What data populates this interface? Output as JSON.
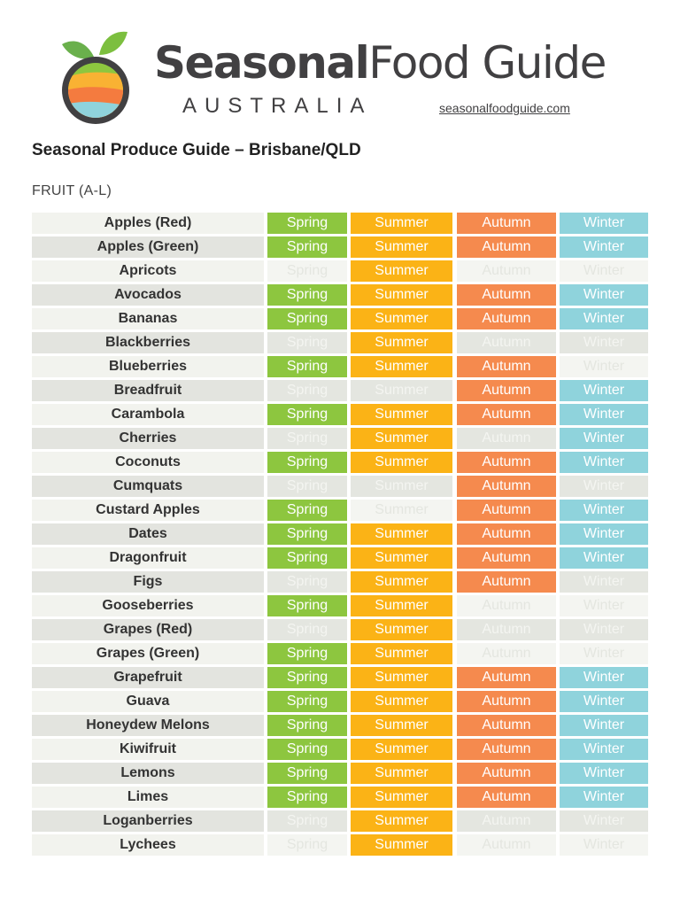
{
  "header": {
    "brand_bold": "Seasonal",
    "brand_light": "Food Guide",
    "country": "AUSTRALIA",
    "site": "seasonalfoodguide.com"
  },
  "title": "Seasonal Produce Guide – Brisbane/QLD",
  "section": "FRUIT  (A-L)",
  "season_labels": [
    "Spring",
    "Summer",
    "Autumn",
    "Winter"
  ],
  "colors": {
    "spring": "#8dc63f",
    "summer": "#fbb316",
    "autumn": "#f58a4e",
    "winter": "#8fd3dc"
  },
  "rows": [
    {
      "name": "Apples (Red)",
      "seasons": [
        1,
        1,
        1,
        1
      ]
    },
    {
      "name": "Apples (Green)",
      "seasons": [
        1,
        1,
        1,
        1
      ]
    },
    {
      "name": "Apricots",
      "seasons": [
        0,
        1,
        0,
        0
      ]
    },
    {
      "name": "Avocados",
      "seasons": [
        1,
        1,
        1,
        1
      ]
    },
    {
      "name": "Bananas",
      "seasons": [
        1,
        1,
        1,
        1
      ]
    },
    {
      "name": "Blackberries",
      "seasons": [
        0,
        1,
        0,
        0
      ]
    },
    {
      "name": "Blueberries",
      "seasons": [
        1,
        1,
        1,
        0
      ]
    },
    {
      "name": "Breadfruit",
      "seasons": [
        0,
        0,
        1,
        1
      ]
    },
    {
      "name": "Carambola",
      "seasons": [
        1,
        1,
        1,
        1
      ]
    },
    {
      "name": "Cherries",
      "seasons": [
        0,
        1,
        0,
        1
      ]
    },
    {
      "name": "Coconuts",
      "seasons": [
        1,
        1,
        1,
        1
      ]
    },
    {
      "name": "Cumquats",
      "seasons": [
        0,
        0,
        1,
        0
      ]
    },
    {
      "name": "Custard Apples",
      "seasons": [
        1,
        0,
        1,
        1
      ]
    },
    {
      "name": "Dates",
      "seasons": [
        1,
        1,
        1,
        1
      ]
    },
    {
      "name": "Dragonfruit",
      "seasons": [
        1,
        1,
        1,
        1
      ]
    },
    {
      "name": "Figs",
      "seasons": [
        0,
        1,
        1,
        0
      ]
    },
    {
      "name": "Gooseberries",
      "seasons": [
        1,
        1,
        0,
        0
      ]
    },
    {
      "name": "Grapes (Red)",
      "seasons": [
        0,
        1,
        0,
        0
      ]
    },
    {
      "name": "Grapes (Green)",
      "seasons": [
        1,
        1,
        0,
        0
      ]
    },
    {
      "name": "Grapefruit",
      "seasons": [
        1,
        1,
        1,
        1
      ]
    },
    {
      "name": "Guava",
      "seasons": [
        1,
        1,
        1,
        1
      ]
    },
    {
      "name": "Honeydew Melons",
      "seasons": [
        1,
        1,
        1,
        1
      ]
    },
    {
      "name": "Kiwifruit",
      "seasons": [
        1,
        1,
        1,
        1
      ]
    },
    {
      "name": "Lemons",
      "seasons": [
        1,
        1,
        1,
        1
      ]
    },
    {
      "name": "Limes",
      "seasons": [
        1,
        1,
        1,
        1
      ]
    },
    {
      "name": "Loganberries",
      "seasons": [
        0,
        1,
        0,
        0
      ]
    },
    {
      "name": "Lychees",
      "seasons": [
        0,
        1,
        0,
        0
      ]
    }
  ]
}
